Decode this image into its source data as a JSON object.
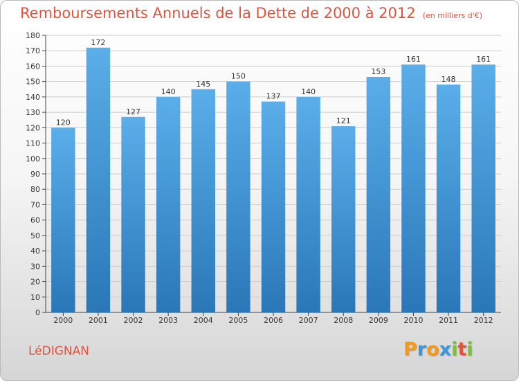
{
  "title": "Remboursements Annuels de la Dette de 2000 à 2012",
  "unit": "(en milliers d'€)",
  "commune": "LéDIGNAN",
  "logo": {
    "letters": [
      {
        "char": "P",
        "color": "#f39a1c"
      },
      {
        "char": "r",
        "color": "#3a98d8"
      },
      {
        "char": "o",
        "color": "#f39a1c"
      },
      {
        "char": "x",
        "color": "#3a98d8"
      },
      {
        "char": "i",
        "color": "#7cbd3c"
      },
      {
        "char": "t",
        "color": "#e0533d"
      },
      {
        "char": "i",
        "color": "#7cbd3c"
      }
    ]
  },
  "colors": {
    "bar_top": "#5aaeea",
    "bar_bottom": "#2a77b8",
    "text_accent": "#e0533d",
    "grid": "#cccccc"
  },
  "chart_data": {
    "type": "bar",
    "title": "Remboursements Annuels de la Dette de 2000 à 2012",
    "xlabel": "",
    "ylabel": "",
    "categories": [
      "2000",
      "2001",
      "2002",
      "2003",
      "2004",
      "2005",
      "2006",
      "2007",
      "2008",
      "2009",
      "2010",
      "2011",
      "2012"
    ],
    "values": [
      120,
      172,
      127,
      140,
      145,
      150,
      137,
      140,
      121,
      153,
      161,
      148,
      161
    ],
    "ylim": [
      0,
      180
    ],
    "ytick_step": 10,
    "grid": true,
    "legend": "none"
  }
}
